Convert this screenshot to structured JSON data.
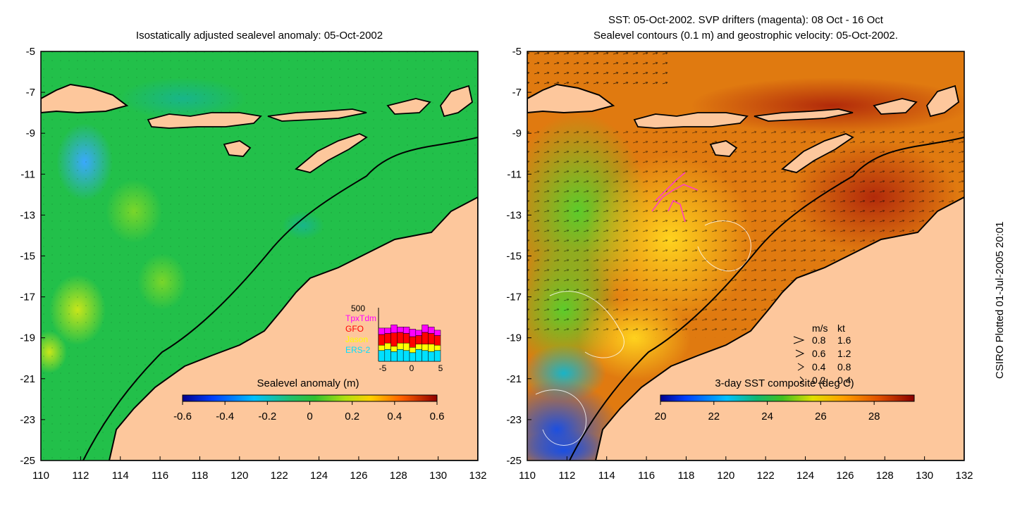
{
  "left_panel": {
    "title": "Isostatically adjusted sealevel anomaly: 05-Oct-2002",
    "colorbar": {
      "title": "Sealevel anomaly (m)",
      "min": -0.6,
      "max": 0.6,
      "tick_labels": [
        "-0.6",
        "-0.4",
        "-0.2",
        "0",
        "0.2",
        "0.4",
        "0.6"
      ]
    },
    "inset": {
      "y_label": "500",
      "legend": [
        {
          "name": "TpxTdm",
          "color": "#ff00ff"
        },
        {
          "name": "GFO",
          "color": "#ff0000"
        },
        {
          "name": "Jason",
          "color": "#ffff00"
        },
        {
          "name": "ERS-2",
          "color": "#00e0ff"
        }
      ],
      "x_tick_labels": [
        "-5",
        "0",
        "5"
      ],
      "bars": [
        {
          "ers2": 0.2,
          "jason": 0.1,
          "gfo": 0.2,
          "tpx": 0.12
        },
        {
          "ers2": 0.22,
          "jason": 0.12,
          "gfo": 0.18,
          "tpx": 0.1
        },
        {
          "ers2": 0.18,
          "jason": 0.1,
          "gfo": 0.25,
          "tpx": 0.15
        },
        {
          "ers2": 0.22,
          "jason": 0.12,
          "gfo": 0.2,
          "tpx": 0.1
        },
        {
          "ers2": 0.2,
          "jason": 0.14,
          "gfo": 0.18,
          "tpx": 0.12
        },
        {
          "ers2": 0.16,
          "jason": 0.1,
          "gfo": 0.2,
          "tpx": 0.14
        },
        {
          "ers2": 0.22,
          "jason": 0.1,
          "gfo": 0.16,
          "tpx": 0.1
        },
        {
          "ers2": 0.2,
          "jason": 0.12,
          "gfo": 0.22,
          "tpx": 0.14
        },
        {
          "ers2": 0.18,
          "jason": 0.14,
          "gfo": 0.2,
          "tpx": 0.12
        },
        {
          "ers2": 0.2,
          "jason": 0.1,
          "gfo": 0.18,
          "tpx": 0.1
        }
      ]
    }
  },
  "right_panel": {
    "title_line1": "SST: 05-Oct-2002. SVP drifters (magenta): 08 Oct - 16 Oct",
    "title_line2": "Sealevel contours (0.1 m) and geostrophic velocity: 05-Oct-2002.",
    "colorbar": {
      "title": "3-day SST composite (deg C)",
      "min": 20,
      "max": 29.5,
      "tick_values": [
        20,
        22,
        24,
        26,
        28
      ],
      "tick_labels": [
        "20",
        "22",
        "24",
        "26",
        "28"
      ]
    },
    "velocity_legend": {
      "header_ms": "m/s",
      "header_kt": "kt",
      "rows": [
        {
          "ms": "0.8",
          "kt": "1.6"
        },
        {
          "ms": "0.6",
          "kt": "1.2"
        },
        {
          "ms": "0.4",
          "kt": "0.8"
        },
        {
          "ms": "0.2",
          "kt": "0.4"
        }
      ]
    }
  },
  "axes": {
    "lon_min": 110,
    "lon_max": 132,
    "lat_min": -25,
    "lat_max": -5,
    "x_tick_labels": [
      "110",
      "112",
      "114",
      "116",
      "118",
      "120",
      "122",
      "124",
      "126",
      "128",
      "130",
      "132"
    ],
    "y_tick_labels": [
      "-5",
      "-7",
      "-9",
      "-11",
      "-13",
      "-15",
      "-17",
      "-19",
      "-21",
      "-23",
      "-25"
    ]
  },
  "credit": "CSIRO Plotted 01-Jul-2005 20:01",
  "colors": {
    "land": "#fdc79c",
    "ocean_green": "#22c04a",
    "sst_warm": "#e07a10"
  }
}
